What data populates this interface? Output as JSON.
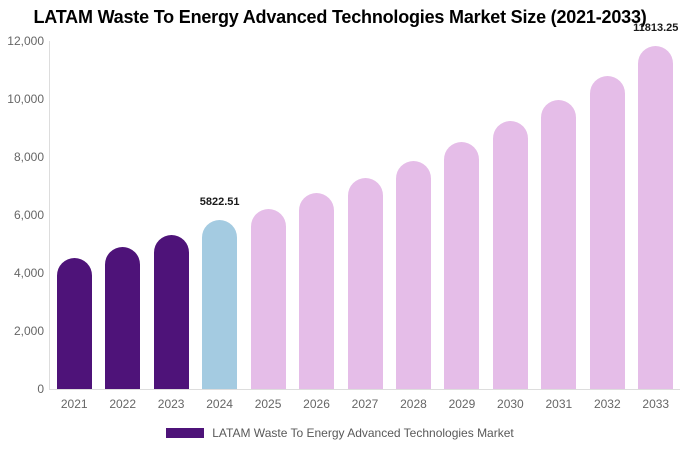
{
  "title": "LATAM Waste To Energy Advanced Technologies Market Size (2021-2033)",
  "legend": {
    "items": [
      {
        "label": "LATAM Waste To Energy Advanced Technologies Market",
        "color": "#4E1379"
      }
    ]
  },
  "chart_data": {
    "type": "bar",
    "title": "LATAM Waste To Energy Advanced Technologies Market Size (2021-2033)",
    "xlabel": "",
    "ylabel": "",
    "categories": [
      "2021",
      "2022",
      "2023",
      "2024",
      "2025",
      "2026",
      "2027",
      "2028",
      "2029",
      "2030",
      "2031",
      "2032",
      "2033"
    ],
    "values": [
      4520,
      4900,
      5310,
      5822.51,
      6200,
      6760,
      7280,
      7860,
      8520,
      9240,
      9970,
      10800,
      11813.25
    ],
    "series": [
      {
        "name": "LATAM Waste To Energy Advanced Technologies Market",
        "values": [
          4520,
          4900,
          5310,
          5822.51,
          6200,
          6760,
          7280,
          7860,
          8520,
          9240,
          9970,
          10800,
          11813.25
        ]
      }
    ],
    "value_labels": [
      {
        "category": "2024",
        "text": "5822.51"
      },
      {
        "category": "2033",
        "text": "11813.25"
      }
    ],
    "ylim": [
      0,
      12000
    ],
    "ytick_step": 2000,
    "ytick_labels": [
      "0",
      "2,000",
      "4,000",
      "6,000",
      "8,000",
      "10,000",
      "12,000"
    ],
    "grid": "off",
    "legend_position": "bottom",
    "colors": {
      "historical": "#4E1379",
      "base_year": "#A4CBE1",
      "forecast": "#E5BDE8"
    },
    "color_roles": [
      "historical",
      "historical",
      "historical",
      "base_year",
      "forecast",
      "forecast",
      "forecast",
      "forecast",
      "forecast",
      "forecast",
      "forecast",
      "forecast",
      "forecast"
    ]
  }
}
